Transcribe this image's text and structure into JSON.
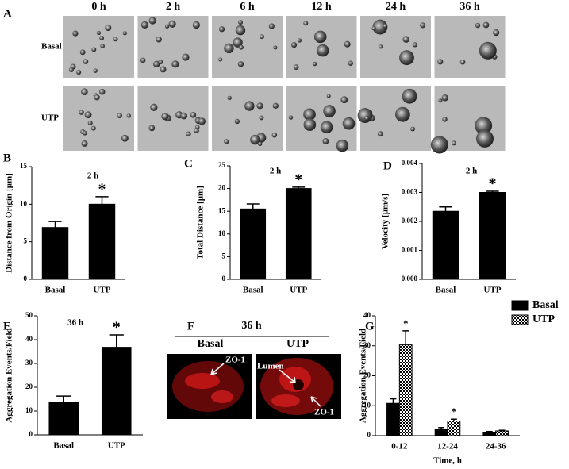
{
  "panel_a": {
    "letter": "A",
    "times": [
      "0 h",
      "2 h",
      "6 h",
      "12 h",
      "24 h",
      "36 h"
    ],
    "rows": [
      "Basal",
      "UTP"
    ]
  },
  "panel_f": {
    "letter": "F",
    "title": "36 h",
    "columns": [
      "Basal",
      "UTP"
    ],
    "annotations": [
      "ZO-1",
      "Lumen",
      "ZO-1"
    ]
  },
  "chart_data": [
    {
      "letter": "B",
      "type": "bar",
      "title": "2 h",
      "y_label": "Distance from Origin [µm]",
      "categories": [
        "Basal",
        "UTP"
      ],
      "values": [
        6.9,
        10.0
      ],
      "errors": [
        0.8,
        1.0
      ],
      "color": "#000000",
      "ylim": [
        0,
        15
      ],
      "yticks": [
        0,
        5,
        10,
        15
      ],
      "annotations": [
        {
          "text": "*",
          "category": "UTP"
        }
      ]
    },
    {
      "letter": "C",
      "type": "bar",
      "title": "2 h",
      "y_label": "Total Distance [µm]",
      "categories": [
        "Basal",
        "UTP"
      ],
      "values": [
        15.5,
        20.0
      ],
      "errors": [
        1.1,
        0.3
      ],
      "color": "#000000",
      "ylim": [
        0,
        25
      ],
      "yticks": [
        0,
        5,
        10,
        15,
        20,
        25
      ],
      "annotations": [
        {
          "text": "*",
          "category": "UTP"
        }
      ]
    },
    {
      "letter": "D",
      "type": "bar",
      "title": "2 h",
      "y_label": "Velocity [µm/s]",
      "categories": [
        "Basal",
        "UTP"
      ],
      "values": [
        0.00235,
        0.003
      ],
      "errors": [
        0.00015,
        4e-05
      ],
      "color": "#000000",
      "ylim": [
        0,
        0.004
      ],
      "yticks": [
        {
          "value": 0,
          "label": "0.000"
        },
        {
          "value": 0.001,
          "label": "0.001"
        },
        {
          "value": 0.002,
          "label": "0.002"
        },
        {
          "value": 0.003,
          "label": "0.003"
        },
        {
          "value": 0.004,
          "label": "0.004"
        }
      ],
      "annotations": [
        {
          "text": "*",
          "category": "UTP"
        }
      ]
    },
    {
      "letter": "E",
      "type": "bar",
      "title": "36 h",
      "y_label": "Aggregation Events/Field",
      "categories": [
        "Basal",
        "UTP"
      ],
      "values": [
        13.8,
        36.8
      ],
      "errors": [
        2.5,
        5.2
      ],
      "color": "#000000",
      "ylim": [
        0,
        50
      ],
      "yticks": [
        0,
        10,
        20,
        30,
        40,
        50
      ],
      "annotations": [
        {
          "text": "*",
          "category": "UTP"
        }
      ]
    },
    {
      "letter": "G",
      "type": "grouped_bar",
      "y_label": "Aggregation Events/Field",
      "x_label": "Time, h",
      "categories": [
        "0-12",
        "12-24",
        "24-36"
      ],
      "series": [
        {
          "name": "Basal",
          "color": "#000000",
          "pattern": "solid",
          "values": [
            10.8,
            2.1,
            1.1
          ],
          "errors": [
            1.5,
            0.6,
            0.3
          ]
        },
        {
          "name": "UTP",
          "color": "#000000",
          "pattern": "checker",
          "values": [
            30.3,
            4.9,
            1.6
          ],
          "errors": [
            4.7,
            0.6,
            0.2
          ]
        }
      ],
      "ylim": [
        0,
        40
      ],
      "yticks": [
        0,
        10,
        20,
        30,
        40
      ],
      "legend": "top-right",
      "annotations": [
        {
          "text": "*",
          "series": "UTP",
          "category": "0-12"
        },
        {
          "text": "*",
          "series": "UTP",
          "category": "12-24"
        }
      ]
    }
  ]
}
